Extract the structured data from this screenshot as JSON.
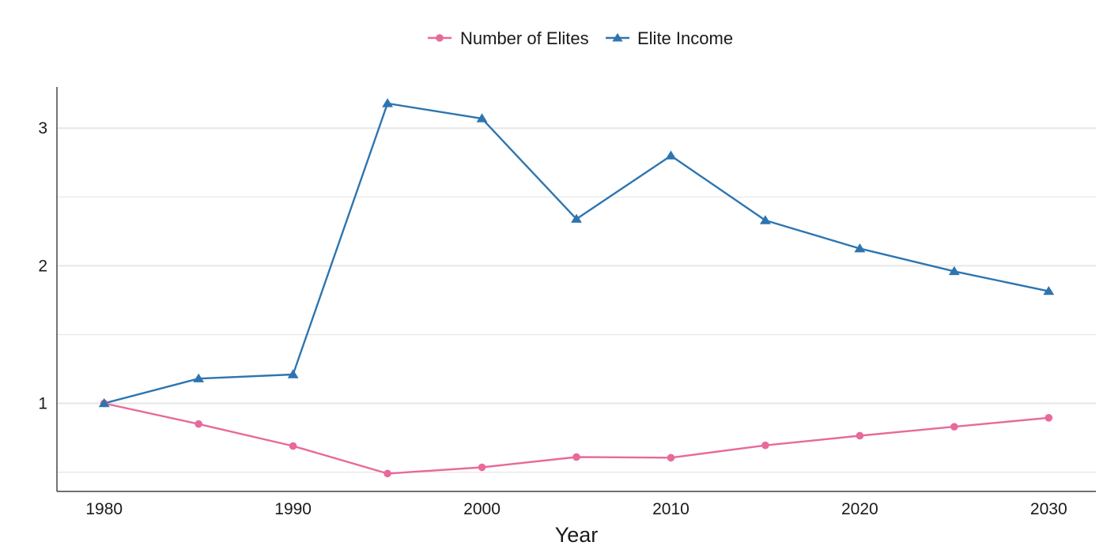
{
  "colors": {
    "number_of_elites": "#E8699A",
    "elite_income": "#2E75B0",
    "grid": "#E6E6E6",
    "axis": "#1A1A1A"
  },
  "chart_data": {
    "type": "line",
    "title": "",
    "xlabel": "Year",
    "ylabel": "",
    "x": [
      1980,
      1985,
      1990,
      1995,
      2000,
      2005,
      2010,
      2015,
      2020,
      2025,
      2030
    ],
    "xlim": [
      1977.5,
      2032.5
    ],
    "ylim": [
      0.36,
      3.3
    ],
    "x_ticks": [
      1980,
      1990,
      2000,
      2010,
      2020,
      2030
    ],
    "y_major_ticks": [
      1,
      2,
      3
    ],
    "y_minor_gridlines": [
      0.5,
      1.5,
      2.5
    ],
    "grid": "horizontal",
    "legend_position": "top",
    "series": [
      {
        "name": "Number of Elites",
        "marker": "circle",
        "color": "#E8699A",
        "values": [
          1.0,
          0.85,
          0.69,
          0.49,
          0.535,
          0.61,
          0.605,
          0.695,
          0.765,
          0.83,
          0.895
        ]
      },
      {
        "name": "Elite Income",
        "marker": "triangle",
        "color": "#2E75B0",
        "values": [
          1.0,
          1.18,
          1.21,
          3.18,
          3.07,
          2.34,
          2.8,
          2.33,
          2.125,
          1.96,
          1.815
        ]
      }
    ]
  }
}
